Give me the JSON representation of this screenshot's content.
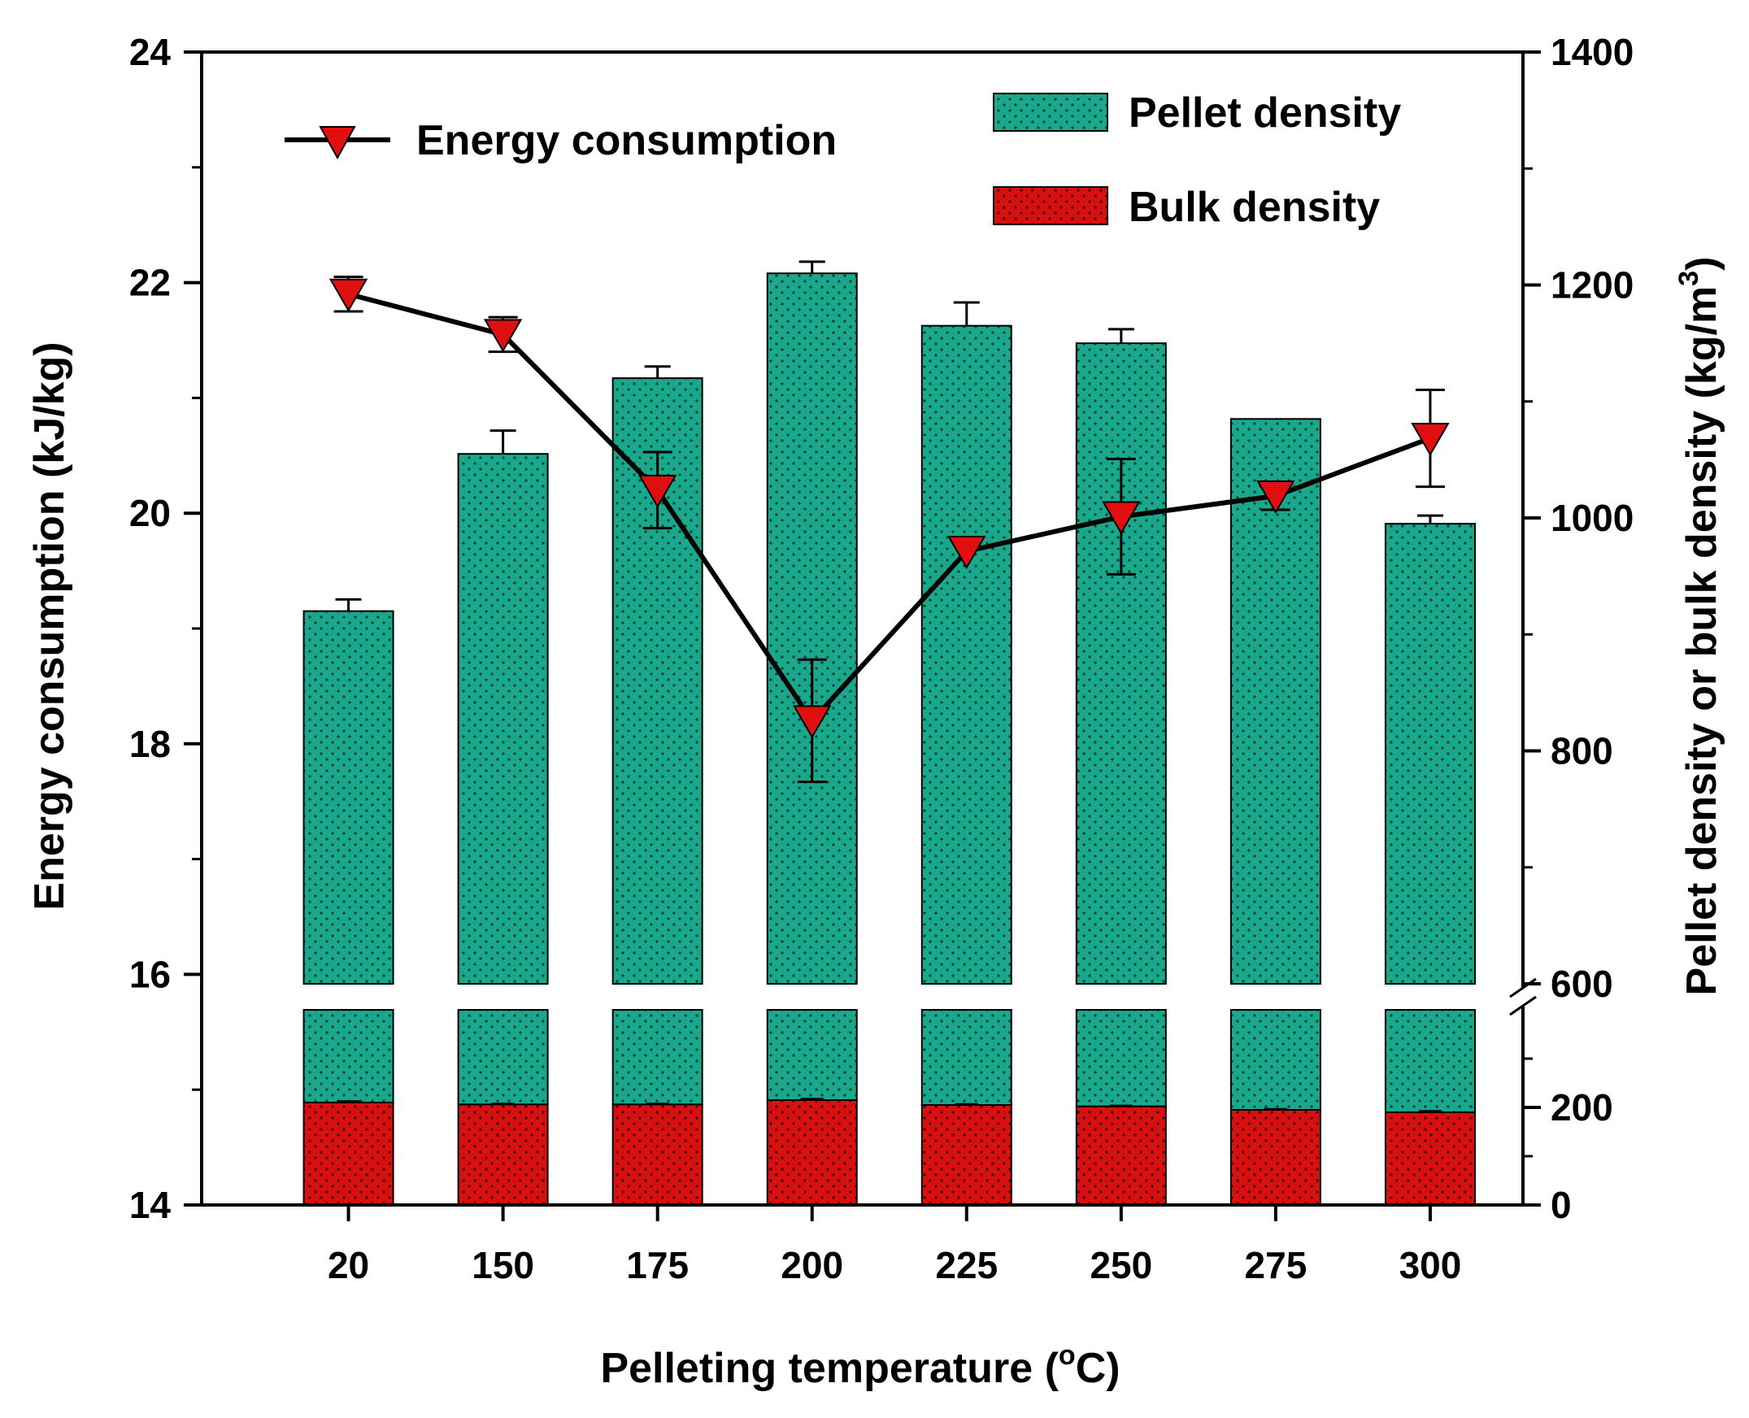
{
  "chart_data": {
    "type": "bar",
    "title": "",
    "xlabel": "Pelleting temperature (",
    "xlabel_sup": "o",
    "xlabel_unit": "C)",
    "ylabel_left": "Energy consumption (kJ/kg)",
    "ylabel_right": "Pellet density or bulk density (kg/m",
    "ylabel_right_sup": "3",
    "ylabel_right_close": ")",
    "categories": [
      "20",
      "150",
      "175",
      "200",
      "225",
      "250",
      "275",
      "300"
    ],
    "ylim_left": [
      14,
      24
    ],
    "yticks_left": [
      "14",
      "16",
      "18",
      "20",
      "22",
      "24"
    ],
    "yticks_right": [
      "0",
      "200",
      "600",
      "800",
      "1000",
      "1200",
      "1400"
    ],
    "ylim_right": [
      0,
      1400
    ],
    "right_axis_break": [
      400,
      600
    ],
    "legend_position": "top",
    "series": [
      {
        "name": "Pellet density",
        "kind": "bar",
        "axis": "right",
        "color": "#1aa88c",
        "values": [
          920,
          1055,
          1120,
          1210,
          1165,
          1150,
          1085,
          995
        ],
        "errors": [
          10,
          20,
          10,
          10,
          20,
          12,
          0,
          7
        ]
      },
      {
        "name": "Bulk density",
        "kind": "bar",
        "axis": "right",
        "color": "#d81010",
        "values": [
          210,
          206,
          206,
          215,
          205,
          202,
          195,
          190
        ],
        "errors": [
          3,
          2,
          2,
          3,
          2,
          2,
          2,
          3
        ]
      },
      {
        "name": "Energy consumption",
        "kind": "line",
        "axis": "left",
        "color": "#000000",
        "marker_color": "#e01010",
        "values": [
          21.9,
          21.55,
          20.2,
          18.2,
          19.67,
          19.97,
          20.15,
          20.65
        ],
        "errors": [
          0.15,
          0.15,
          0.33,
          0.53,
          0.0,
          0.5,
          0.12,
          0.42
        ]
      }
    ]
  }
}
